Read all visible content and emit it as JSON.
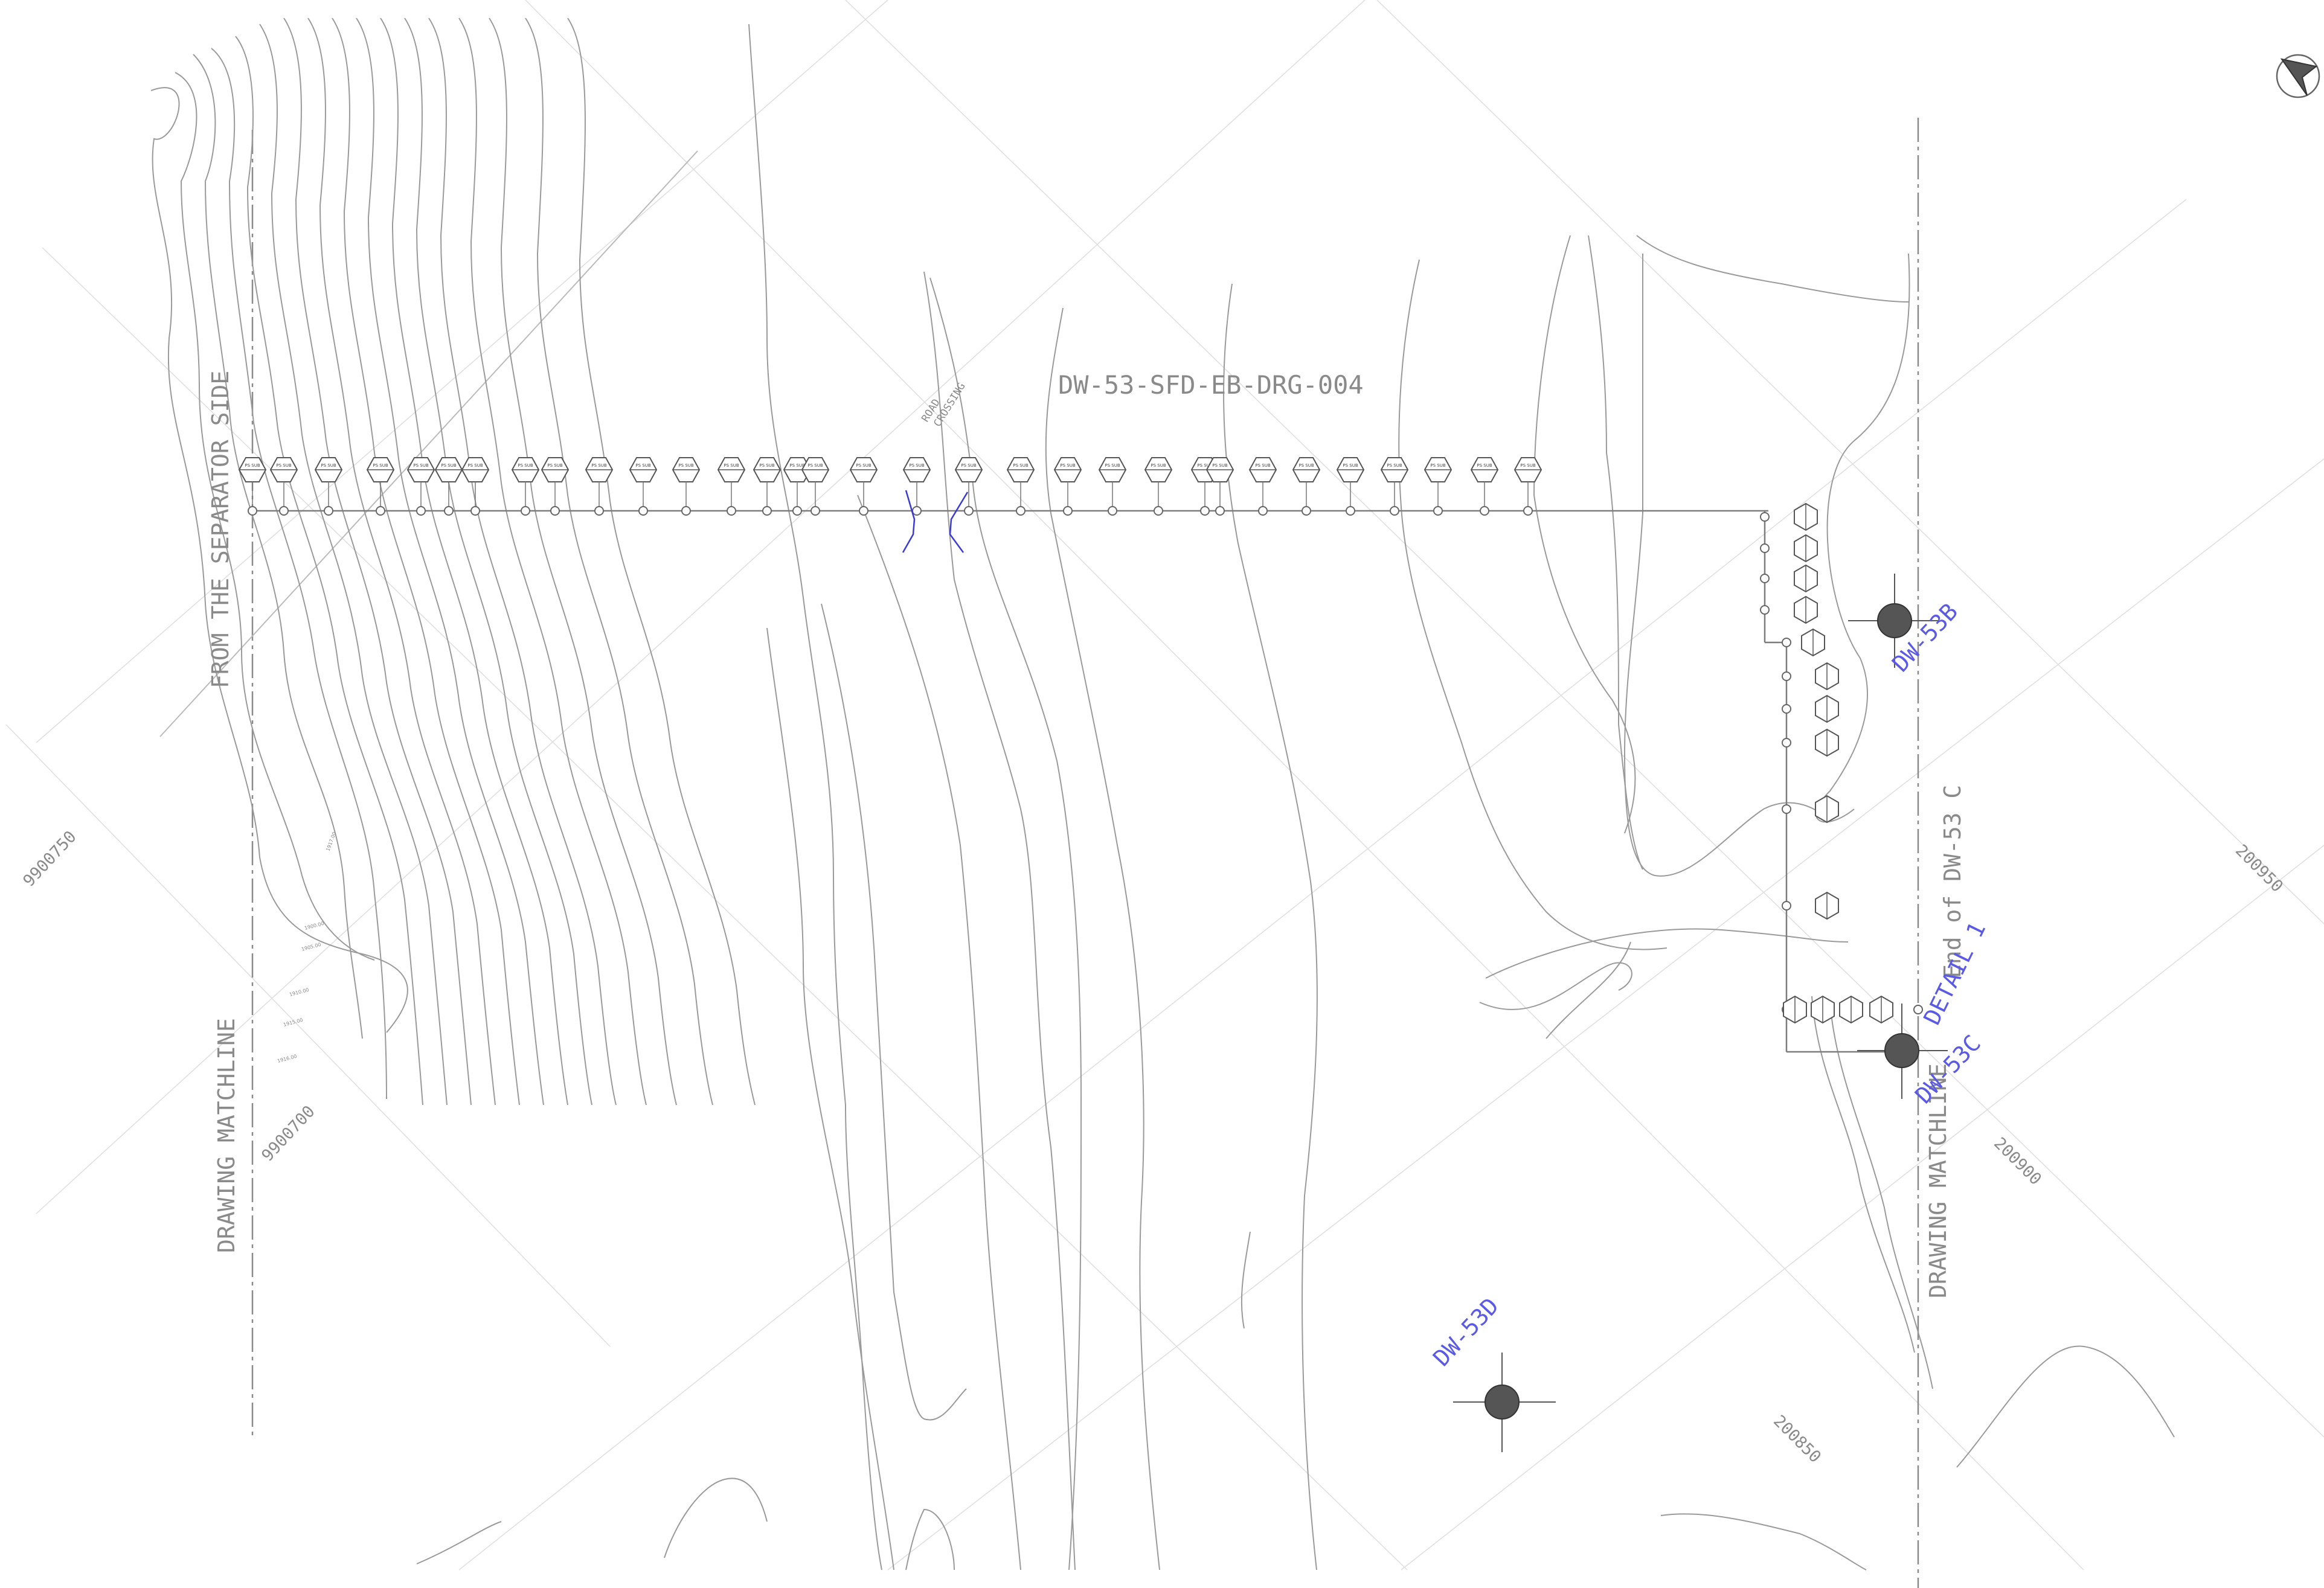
{
  "drawing": {
    "title_code": "DW-53-SFD-EB-DRG-004",
    "left_label_line1": "DRAWING MATCHLINE",
    "left_label_line2": "FROM THE SEPARATOR SIDE",
    "right_label_line1": "DRAWING MATCHLINE",
    "right_label_line2": "End of DW-53 C",
    "road_crossing_line1": "ROAD",
    "road_crossing_line2": "CROSSING",
    "detail_label": "DETAIL 1",
    "wells": [
      {
        "name": "DW-53B"
      },
      {
        "name": "DW-53C"
      },
      {
        "name": "DW-53D"
      }
    ],
    "grid_coordinates": {
      "northing_1": "9900750",
      "northing_2": "9900700",
      "easting_1": "200950",
      "easting_2": "200900",
      "easting_3": "200850"
    },
    "contour_labels": [
      "1900.00",
      "1905.00",
      "1910.00",
      "1915.00",
      "1916.00",
      "1917.00"
    ],
    "hex_marker_text_top": "PS SUB",
    "hex_marker_count": 32,
    "vertical_marker_count": 14,
    "north_arrow_symbol": "north-arrow-icon",
    "colors": {
      "contour": "#9a9a9a",
      "grid": "#dedede",
      "well": "#555555",
      "well_label": "#5a5ae6",
      "road": "#3a3ad6",
      "text": "#8a8a8a"
    }
  }
}
